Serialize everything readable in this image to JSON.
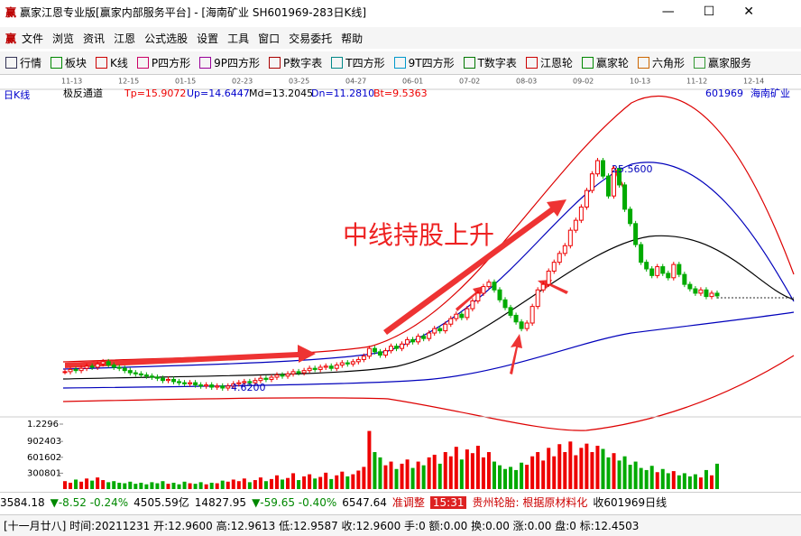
{
  "title_bar": {
    "title": "赢家江恩专业版[赢家内部服务平台] - [海南矿业  SH601969-283日K线]"
  },
  "menu": [
    "文件",
    "浏览",
    "资讯",
    "江恩",
    "公式选股",
    "设置",
    "工具",
    "窗口",
    "交易委托",
    "帮助"
  ],
  "toolbar": [
    "行情",
    "板块",
    "K线",
    "P四方形",
    "9P四方形",
    "P数字表",
    "T四方形",
    "9T四方形",
    "T数字表",
    "江恩轮",
    "赢家轮",
    "六角形",
    "赢家服务"
  ],
  "chart": {
    "period": "日K线",
    "indicator": "极反通道",
    "params": [
      "Tp=15.9072",
      "Up=14.6447",
      "Md=13.2045",
      "Dn=11.2810",
      "Bt=9.5363"
    ],
    "code": "601969",
    "stock": "海南矿业",
    "date_labels": [
      "11-13",
      "12-15",
      "01-15",
      "02-23",
      "03-25",
      "04-27",
      "06-01",
      "07-02",
      "08-03",
      "09-02",
      "10-13",
      "11-12",
      "12-14"
    ],
    "high_label": "25.5600",
    "low_label": "4.6200",
    "headline": "中线持股上升",
    "closes": [
      6.1,
      6.3,
      6.2,
      6.4,
      6.6,
      6.5,
      6.8,
      7.0,
      6.7,
      6.5,
      6.4,
      6.2,
      6.0,
      5.9,
      5.8,
      5.7,
      5.6,
      5.5,
      5.3,
      5.4,
      5.2,
      5.1,
      5.0,
      5.1,
      4.9,
      4.8,
      4.9,
      4.7,
      4.8,
      4.62,
      4.8,
      5.0,
      5.1,
      5.2,
      5.1,
      5.3,
      5.5,
      5.4,
      5.6,
      5.8,
      5.7,
      5.9,
      6.1,
      6.0,
      6.2,
      6.4,
      6.3,
      6.5,
      6.6,
      6.4,
      6.7,
      6.9,
      6.8,
      7.0,
      7.2,
      7.5,
      8.2,
      7.9,
      7.6,
      8.0,
      8.4,
      8.2,
      8.6,
      9.0,
      8.8,
      9.3,
      9.1,
      9.6,
      10.0,
      9.8,
      10.4,
      10.9,
      11.3,
      11.0,
      11.8,
      12.5,
      13.2,
      13.8,
      14.2,
      13.5,
      12.6,
      11.9,
      11.2,
      10.6,
      10.0,
      10.5,
      12.0,
      13.5,
      14.0,
      15.2,
      16.0,
      16.8,
      17.5,
      18.9,
      19.8,
      21.0,
      22.5,
      24.0,
      25.2,
      23.8,
      22.0,
      24.5,
      23.0,
      20.8,
      19.5,
      17.6,
      16.0,
      15.4,
      14.8,
      15.6,
      15.0,
      14.6,
      15.8,
      14.9,
      14.0,
      13.6,
      13.2,
      13.5,
      12.9,
      13.2,
      12.96
    ],
    "volumes": [
      150000,
      120000,
      180000,
      140000,
      200000,
      160000,
      220000,
      170000,
      130000,
      150000,
      120000,
      110000,
      140000,
      100000,
      120000,
      90000,
      130000,
      110000,
      150000,
      100000,
      120000,
      90000,
      140000,
      110000,
      100000,
      130000,
      90000,
      120000,
      110000,
      160000,
      140000,
      180000,
      150000,
      200000,
      130000,
      170000,
      220000,
      150000,
      190000,
      260000,
      180000,
      210000,
      300000,
      170000,
      240000,
      280000,
      200000,
      230000,
      310000,
      190000,
      260000,
      330000,
      240000,
      280000,
      350000,
      420000,
      1100000,
      700000,
      600000,
      450000,
      520000,
      380000,
      480000,
      560000,
      400000,
      520000,
      450000,
      600000,
      650000,
      480000,
      700000,
      620000,
      800000,
      560000,
      750000,
      680000,
      820000,
      600000,
      700000,
      520000,
      450000,
      380000,
      420000,
      360000,
      500000,
      460000,
      620000,
      700000,
      540000,
      780000,
      620000,
      850000,
      700000,
      900000,
      640000,
      780000,
      860000,
      700000,
      820000,
      760000,
      600000,
      680000,
      540000,
      620000,
      460000,
      520000,
      400000,
      360000,
      440000,
      320000,
      380000,
      300000,
      340000,
      260000,
      300000,
      240000,
      280000,
      220000,
      360000,
      260000,
      480000
    ],
    "volume_ticks": [
      300801,
      601602,
      902403,
      {
        "value": 1229600,
        "label": "1.2296"
      }
    ],
    "volume_ylim": [
      0,
      1229600
    ]
  },
  "status_bar": {
    "sh_index": "3584.18",
    "sh_change": "▼-8.52 -0.24%",
    "sh_amount": "4505.59亿",
    "sz_index": "14827.95",
    "sz_change": "▼-59.65 -0.40%",
    "sz_amount": "6547.64",
    "news_tag": "准调整",
    "time": "15:31",
    "news": "贵州轮胎: 根据原材料化",
    "close_label": "收601969日线"
  },
  "info_bar": {
    "text": "[十一月廿八] 时间:20211231 开:12.9600 高:12.9613 低:12.9587 收:12.9600 手:0 额:0.00 换:0.00 涨:0.00 盘:0 标:12.4503"
  }
}
